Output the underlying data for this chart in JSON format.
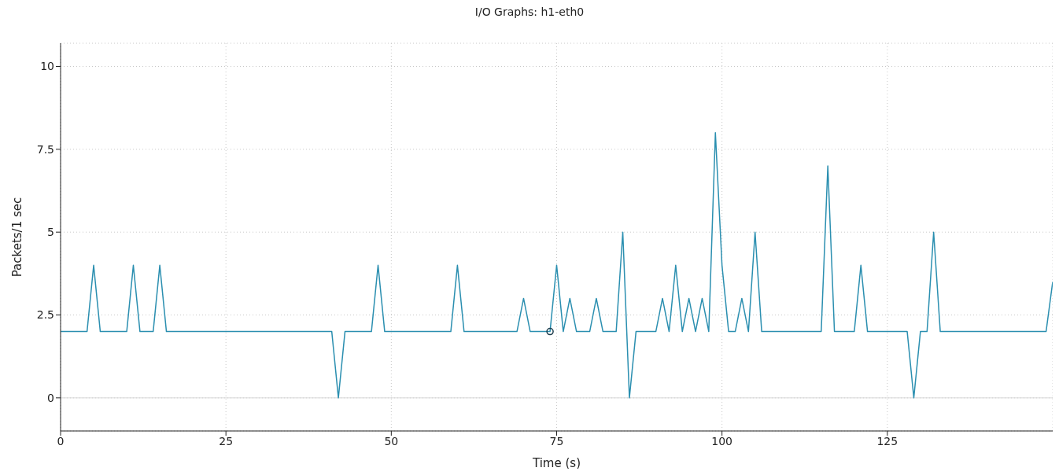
{
  "chart_data": {
    "type": "line",
    "title": "I/O Graphs: h1-eth0",
    "xlabel": "Time (s)",
    "ylabel": "Packets/1 sec",
    "xlim": [
      0,
      150
    ],
    "xticks": [
      0,
      25,
      50,
      75,
      100,
      125
    ],
    "ylim": [
      -1,
      10.7
    ],
    "yticks": [
      0,
      2.5,
      5,
      7.5,
      10
    ],
    "grid": true,
    "marker": "none",
    "line_style": "solid",
    "ref_lines": [
      {
        "axis": "y",
        "value": 0,
        "color": "#d9d9d9"
      }
    ],
    "series": [
      {
        "color": "#2b8fb0",
        "x": [
          0,
          4,
          5,
          6,
          10,
          11,
          12,
          14,
          15,
          16,
          41,
          42,
          43,
          47,
          48,
          49,
          59,
          60,
          61,
          69,
          70,
          71,
          74,
          75,
          76,
          77,
          78,
          80,
          81,
          82,
          84,
          85,
          86,
          87,
          90,
          91,
          92,
          93,
          94,
          95,
          96,
          97,
          98,
          99,
          100,
          101,
          102,
          103,
          104,
          105,
          106,
          115,
          116,
          117,
          120,
          121,
          122,
          128,
          129,
          130,
          131,
          132,
          133,
          149,
          150
        ],
        "values": [
          2,
          2,
          4,
          2,
          2,
          4,
          2,
          2,
          4,
          2,
          2,
          0,
          2,
          2,
          4,
          2,
          2,
          4,
          2,
          2,
          3,
          2,
          2,
          4,
          2,
          3,
          2,
          2,
          3,
          2,
          2,
          5,
          0,
          2,
          2,
          3,
          2,
          4,
          2,
          3,
          2,
          3,
          2,
          8,
          4,
          2,
          2,
          3,
          2,
          5,
          2,
          2,
          7,
          2,
          2,
          4,
          2,
          2,
          0,
          2,
          2,
          5,
          2,
          2,
          3.5
        ]
      },
      {
        "type": "scatter",
        "color": "#1a3a4a",
        "marker": "circle",
        "x": [
          74
        ],
        "values": [
          2
        ]
      }
    ]
  }
}
